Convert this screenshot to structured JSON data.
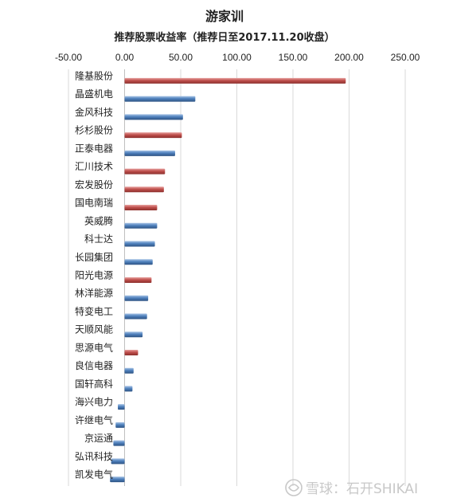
{
  "chart_data": {
    "type": "bar",
    "orientation": "horizontal",
    "title": "游家训",
    "subtitle": "推荐股票收益率（推荐日至2017.11.20收盘）",
    "xlim": [
      -50,
      250
    ],
    "ticks": [
      "-50.00",
      "0.00",
      "50.00",
      "100.00",
      "150.00",
      "200.00",
      "250.00"
    ],
    "tick_values": [
      -50,
      0,
      50,
      100,
      150,
      200,
      250
    ],
    "grid": true,
    "axis_position": "top",
    "categories": [
      "隆基股份",
      "晶盛机电",
      "金风科技",
      "杉杉股份",
      "正泰电器",
      "汇川技术",
      "宏发股份",
      "国电南瑞",
      "英威腾",
      "科士达",
      "长园集团",
      "阳光电源",
      "林洋能源",
      "特变电工",
      "天顺风能",
      "思源电气",
      "良信电器",
      "国轩高科",
      "海兴电力",
      "许继电气",
      "京运通",
      "弘讯科技",
      "凯发电气"
    ],
    "values": [
      197,
      63,
      52,
      51,
      45,
      36,
      35,
      29,
      29,
      27,
      25,
      24,
      21,
      20,
      16,
      12,
      8,
      7,
      -6,
      -8,
      -10,
      -12,
      -13
    ],
    "bar_colors": [
      "red",
      "blue",
      "blue",
      "red",
      "blue",
      "red",
      "red",
      "red",
      "blue",
      "blue",
      "blue",
      "red",
      "blue",
      "blue",
      "blue",
      "red",
      "blue",
      "blue",
      "blue",
      "blue",
      "blue",
      "blue",
      "blue"
    ],
    "palette": {
      "red": "#c0504d",
      "blue": "#4f81bd"
    }
  },
  "watermark": {
    "text": "雪球：石开SHIKAI"
  }
}
